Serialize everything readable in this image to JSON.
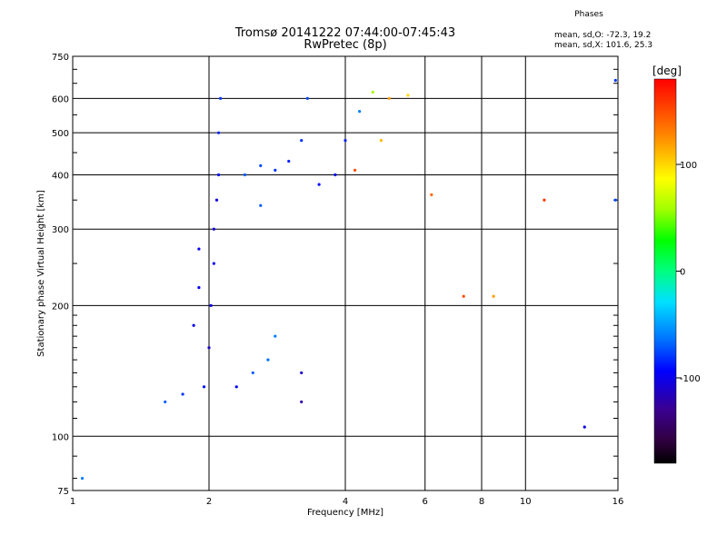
{
  "chart_data": {
    "type": "scatter",
    "title": "Tromsø 20141222 07:44:00-07:45:43",
    "subtitle": "RwPretec (8p)",
    "xlabel": "Frequency [MHz]",
    "ylabel": "Stationary phase Virtual Height [km]",
    "x_scale": "log",
    "y_scale": "log",
    "xlim": [
      1,
      16
    ],
    "ylim": [
      75,
      750
    ],
    "x_ticks": [
      1,
      2,
      4,
      6,
      8,
      10,
      16
    ],
    "x_tick_labels": [
      "1",
      "2",
      "4",
      "6",
      "8",
      "10",
      "16"
    ],
    "y_ticks": [
      75,
      100,
      200,
      300,
      400,
      500,
      600,
      750
    ],
    "y_tick_labels": [
      "75",
      "100",
      "200",
      "300",
      "400",
      "500",
      "600",
      "750"
    ],
    "grid": true,
    "info": {
      "heading": "Phases",
      "line1": "mean, sd,O: -72.3, 19.2",
      "line2": "mean, sd,X: 101.6, 25.3"
    },
    "colorbar": {
      "label": "[deg]",
      "range": [
        -180,
        180
      ],
      "ticks": [
        100,
        0,
        -100
      ],
      "tick_labels": [
        "100",
        "0",
        "-100"
      ]
    },
    "series": [
      {
        "values_note": "x = frequency (MHz), y = virtual height (km), p = phase (deg)",
        "points": [
          {
            "x": 1.95,
            "y": 130,
            "p": -90
          },
          {
            "x": 2.0,
            "y": 160,
            "p": -110
          },
          {
            "x": 2.02,
            "y": 200,
            "p": -100
          },
          {
            "x": 2.05,
            "y": 250,
            "p": -95
          },
          {
            "x": 2.05,
            "y": 300,
            "p": -105
          },
          {
            "x": 2.08,
            "y": 350,
            "p": -100
          },
          {
            "x": 2.1,
            "y": 400,
            "p": -90
          },
          {
            "x": 2.1,
            "y": 500,
            "p": -85
          },
          {
            "x": 2.12,
            "y": 600,
            "p": -80
          },
          {
            "x": 1.85,
            "y": 180,
            "p": -100
          },
          {
            "x": 1.9,
            "y": 220,
            "p": -95
          },
          {
            "x": 1.9,
            "y": 270,
            "p": -100
          },
          {
            "x": 1.75,
            "y": 125,
            "p": -80
          },
          {
            "x": 1.6,
            "y": 120,
            "p": -70
          },
          {
            "x": 2.3,
            "y": 130,
            "p": -95
          },
          {
            "x": 2.5,
            "y": 140,
            "p": -70
          },
          {
            "x": 2.7,
            "y": 150,
            "p": -65
          },
          {
            "x": 2.8,
            "y": 170,
            "p": -60
          },
          {
            "x": 2.4,
            "y": 400,
            "p": -70
          },
          {
            "x": 2.6,
            "y": 420,
            "p": -75
          },
          {
            "x": 2.8,
            "y": 410,
            "p": -80
          },
          {
            "x": 3.0,
            "y": 430,
            "p": -85
          },
          {
            "x": 3.2,
            "y": 480,
            "p": -80
          },
          {
            "x": 3.3,
            "y": 600,
            "p": -75
          },
          {
            "x": 3.5,
            "y": 380,
            "p": -90
          },
          {
            "x": 3.8,
            "y": 400,
            "p": -95
          },
          {
            "x": 4.0,
            "y": 480,
            "p": -85
          },
          {
            "x": 4.3,
            "y": 560,
            "p": -60
          },
          {
            "x": 4.6,
            "y": 620,
            "p": 60
          },
          {
            "x": 4.8,
            "y": 480,
            "p": 110
          },
          {
            "x": 5.0,
            "y": 600,
            "p": 120
          },
          {
            "x": 5.5,
            "y": 610,
            "p": 100
          },
          {
            "x": 4.2,
            "y": 410,
            "p": 150
          },
          {
            "x": 3.2,
            "y": 140,
            "p": -110
          },
          {
            "x": 3.2,
            "y": 120,
            "p": -120
          },
          {
            "x": 2.6,
            "y": 340,
            "p": -70
          },
          {
            "x": 15.8,
            "y": 660,
            "p": -80
          },
          {
            "x": 15.8,
            "y": 350,
            "p": -75
          },
          {
            "x": 1.05,
            "y": 80,
            "p": -60
          },
          {
            "x": 8.5,
            "y": 210,
            "p": 120
          },
          {
            "x": 11.0,
            "y": 350,
            "p": 160
          },
          {
            "x": 13.5,
            "y": 105,
            "p": -100
          },
          {
            "x": 6.2,
            "y": 360,
            "p": 140
          },
          {
            "x": 7.3,
            "y": 210,
            "p": 150
          }
        ]
      }
    ]
  }
}
